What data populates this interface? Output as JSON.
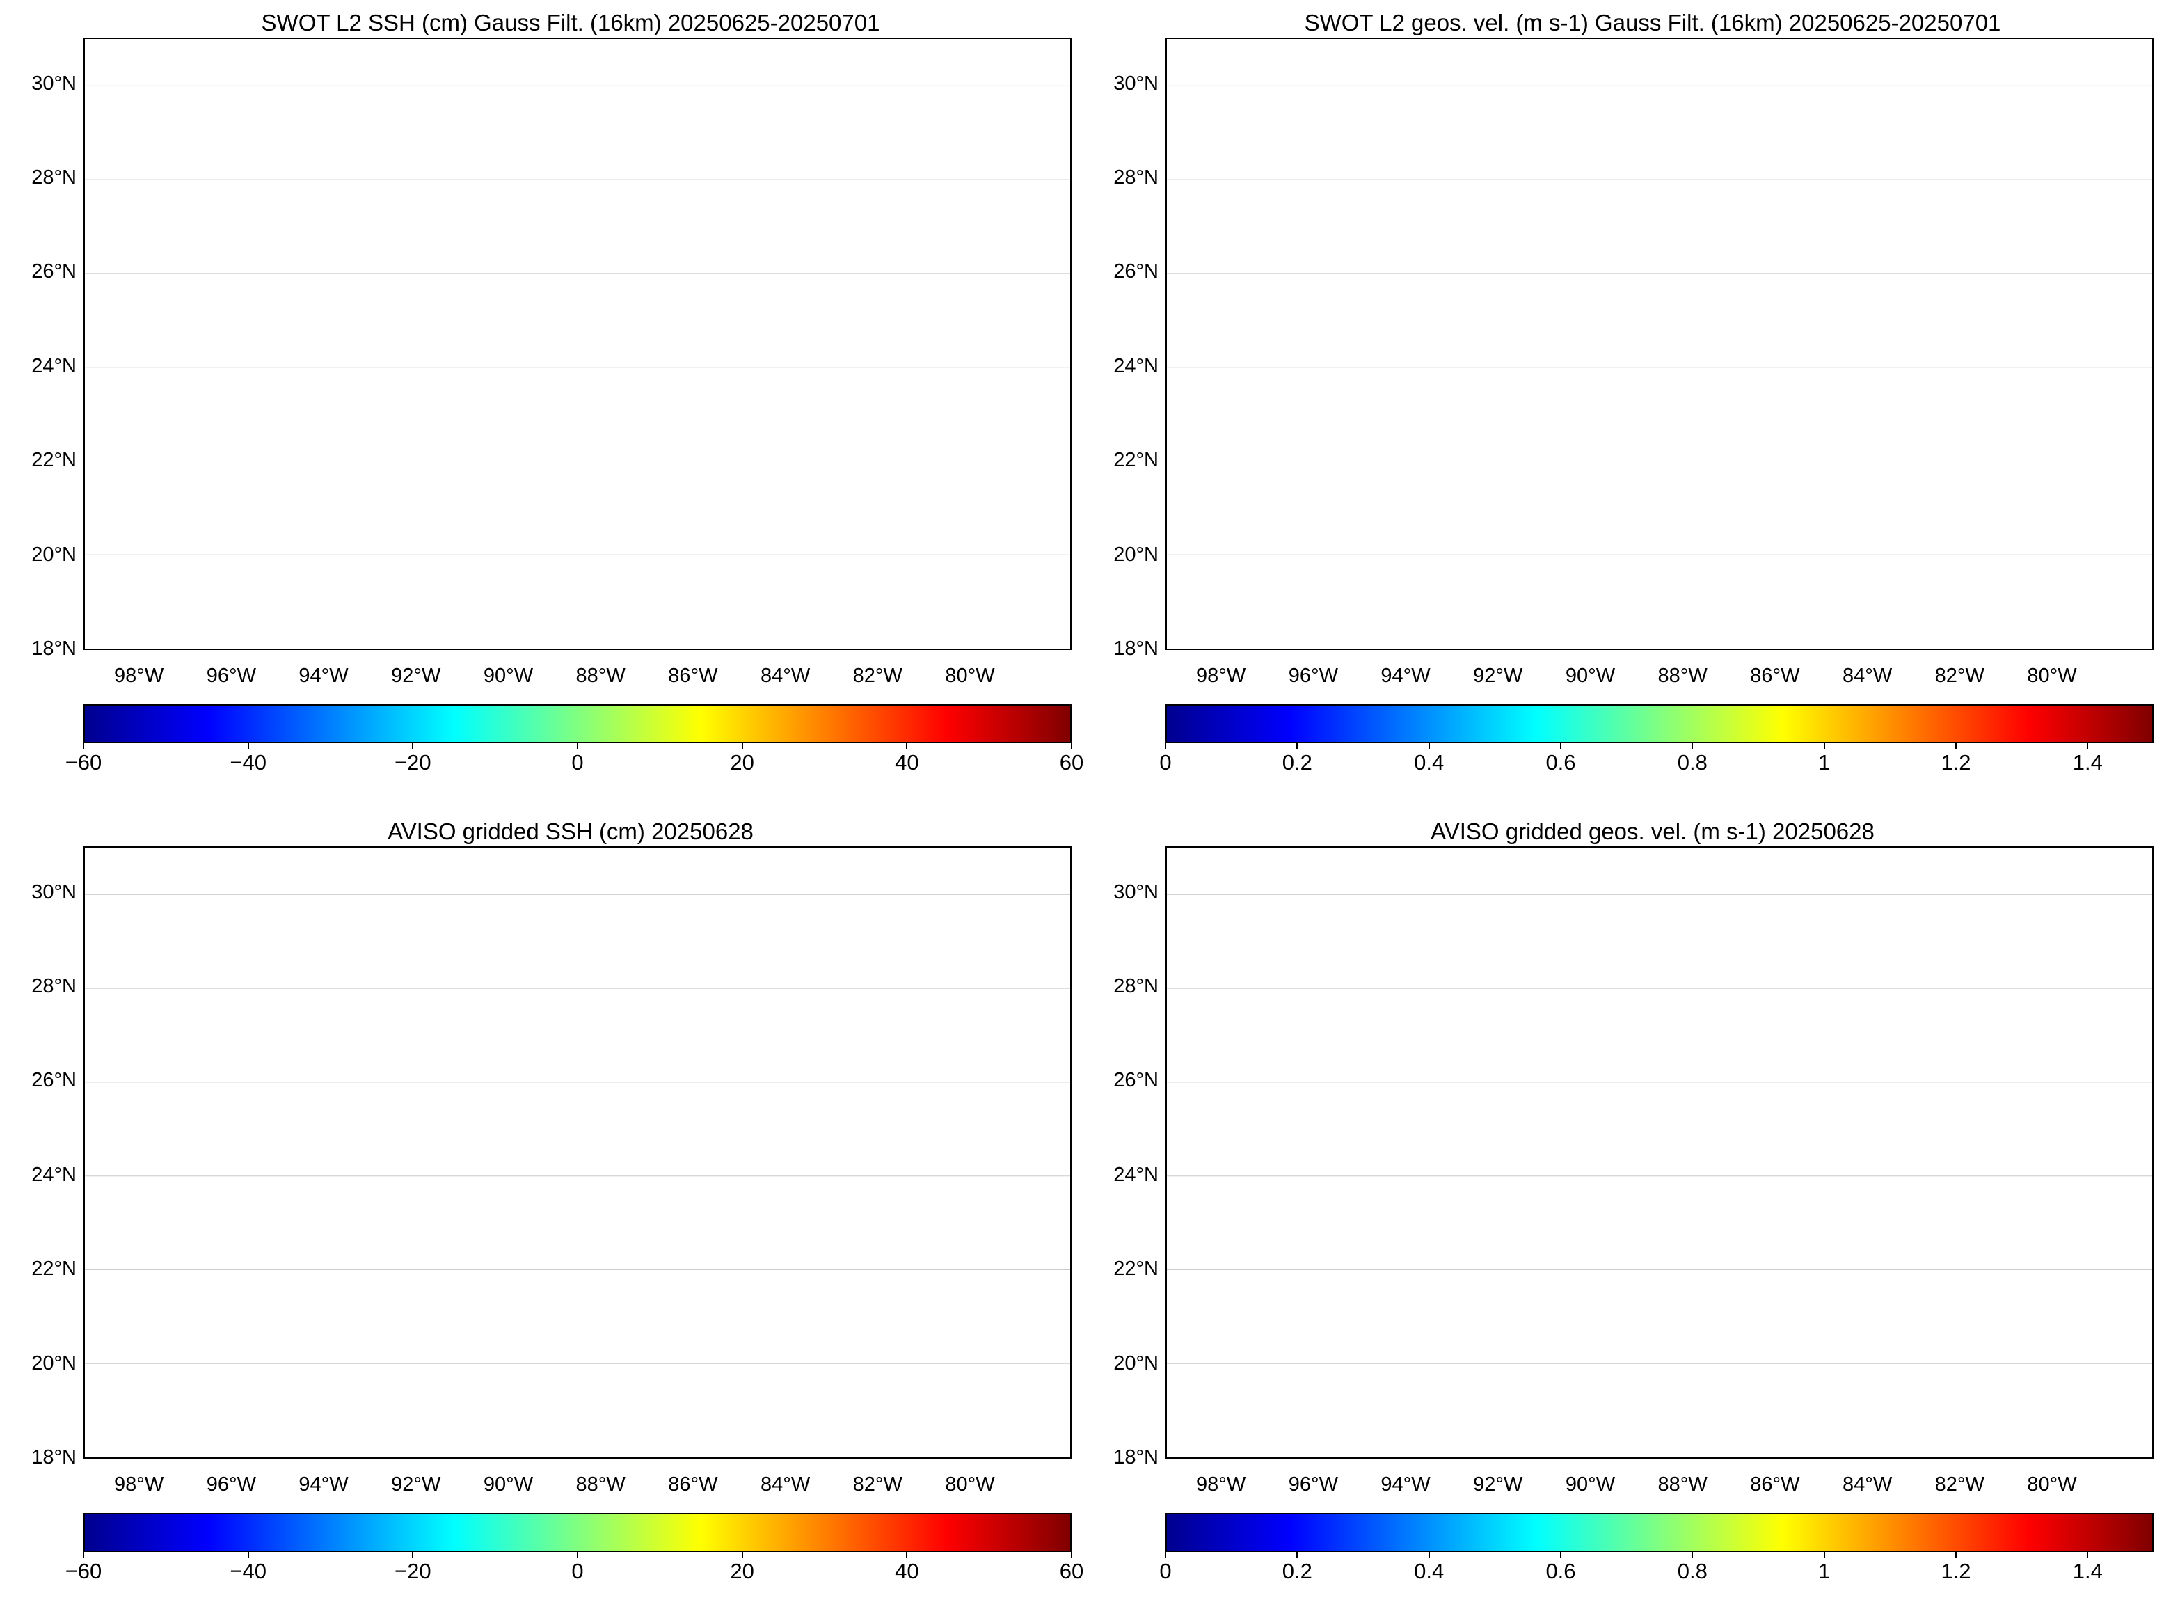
{
  "colors": {
    "land": "#000000",
    "ocean_missing": "#ffffff",
    "jet_colormap": [
      "#00008f",
      "#0000ff",
      "#0080ff",
      "#00ffff",
      "#80ff80",
      "#ffff00",
      "#ff8000",
      "#ff0000",
      "#800000"
    ]
  },
  "latitude_labels": [
    "30°N",
    "28°N",
    "26°N",
    "24°N",
    "22°N",
    "20°N",
    "18°N"
  ],
  "longitude_labels": [
    "98°W",
    "96°W",
    "94°W",
    "92°W",
    "90°W",
    "88°W",
    "86°W",
    "84°W",
    "82°W",
    "80°W"
  ],
  "panels": [
    {
      "id": "swot-ssh",
      "title": "SWOT L2 SSH (cm) Gauss Filt. (16km) 20250625-20250701",
      "kind": "ssh-swaths",
      "colorbar_ticks": [
        "−60",
        "−40",
        "−20",
        "0",
        "20",
        "40",
        "60"
      ],
      "colorbar_range": [
        -60,
        60
      ]
    },
    {
      "id": "swot-vel",
      "title": "SWOT L2 geos. vel. (m s-1) Gauss Filt. (16km) 20250625-20250701",
      "kind": "vel-swaths",
      "colorbar_ticks": [
        "0",
        "0.2",
        "0.4",
        "0.6",
        "0.8",
        "1",
        "1.2",
        "1.4"
      ],
      "colorbar_range": [
        0,
        1.5
      ]
    },
    {
      "id": "aviso-ssh",
      "title": "AVISO gridded SSH (cm) 20250628",
      "kind": "ssh-grid",
      "colorbar_ticks": [
        "−60",
        "−40",
        "−20",
        "0",
        "20",
        "40",
        "60"
      ],
      "colorbar_range": [
        -60,
        60
      ]
    },
    {
      "id": "aviso-vel",
      "title": "AVISO gridded geos. vel. (m s-1)  20250628",
      "kind": "vel-grid",
      "colorbar_ticks": [
        "0",
        "0.2",
        "0.4",
        "0.6",
        "0.8",
        "1",
        "1.2",
        "1.4"
      ],
      "colorbar_range": [
        0,
        1.5
      ]
    }
  ]
}
